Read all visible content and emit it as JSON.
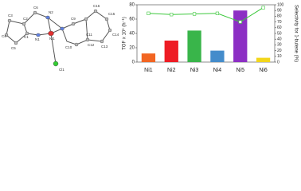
{
  "structure": {
    "atom_labels": [
      "C3",
      "C2",
      "C6",
      "N2",
      "C4",
      "C1",
      "N1",
      "Ni1",
      "C9",
      "C16",
      "C15",
      "C10",
      "C11",
      "C14",
      "C12",
      "C13",
      "C5",
      "Cl1"
    ]
  },
  "chart_data": {
    "type": "bar",
    "categories": [
      "Ni1",
      "Ni2",
      "Ni3",
      "Ni4",
      "Ni5",
      "Ni6"
    ],
    "ylabel": "TOF x 10⁵ (h⁻¹)",
    "y2label": "Selectivity for 1-butene (%)",
    "series": [
      {
        "type": "bar",
        "colors": [
          "#f26522",
          "#ee1c24",
          "#39b54a",
          "#448ccb",
          "#8c2fc4",
          "#f2d61b"
        ],
        "values": [
          12,
          30,
          44,
          16,
          72,
          6
        ]
      },
      {
        "type": "line",
        "axis": "y2",
        "color": "#3cc83c",
        "values": [
          85,
          83,
          84,
          85,
          70,
          95
        ]
      }
    ],
    "ylim": [
      0,
      80
    ],
    "yticks": [
      0,
      20,
      40,
      60,
      80
    ],
    "y2lim": [
      0,
      100
    ],
    "y2ticks": [
      0,
      10,
      20,
      30,
      40,
      50,
      60,
      70,
      80,
      90,
      100
    ]
  }
}
